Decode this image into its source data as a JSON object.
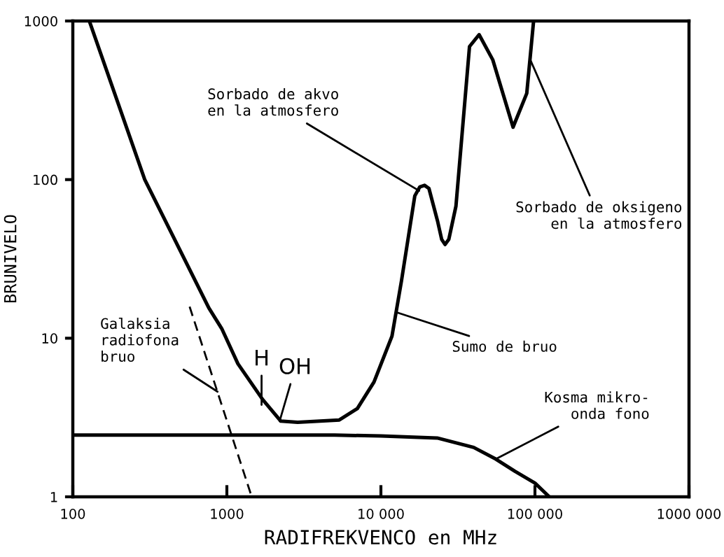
{
  "chart_data": {
    "type": "line",
    "xlabel": "RADIFREKVENCO en MHz",
    "ylabel": "BRUNIVELO",
    "log": "xy",
    "grid": false,
    "legend": false,
    "marker": "none",
    "xlim": [
      100,
      1000000
    ],
    "ylim": [
      1,
      1000
    ],
    "xticks": [
      100,
      1000,
      {
        "value": 10000,
        "label": "10 000"
      },
      {
        "value": 100000,
        "label": "100 000"
      },
      {
        "value": 1000000,
        "label": "1000 000"
      }
    ],
    "yticks": [
      1,
      10,
      100,
      1000
    ],
    "series": [
      {
        "color": "#000000",
        "line_style": "solid",
        "x": [
          128,
          293,
          764,
          926,
          1180,
          1710,
          2240,
          2880,
          5370,
          7030,
          9020,
          11800,
          13600,
          16600,
          17900,
          19200,
          20500,
          23300,
          24800,
          26100,
          27600,
          30700,
          37600,
          43400,
          53200,
          72100,
          88500,
          98000
        ],
        "values": [
          1000,
          100,
          15.5,
          11.5,
          6.9,
          4.1,
          3.0,
          2.95,
          3.05,
          3.6,
          5.3,
          10.3,
          23,
          79,
          90,
          92,
          88,
          55,
          42,
          39,
          42,
          68,
          690,
          820,
          570,
          214,
          350,
          1000
        ]
      },
      {
        "color": "#000000",
        "line_style": "solid",
        "x": [
          100,
          5000,
          10000,
          23200,
          40000,
          55700,
          74000,
          100000,
          124000
        ],
        "values": [
          2.45,
          2.45,
          2.42,
          2.35,
          2.05,
          1.73,
          1.45,
          1.22,
          1
        ]
      },
      {
        "color": "#000000",
        "line_style": "dashed",
        "x": [
          573,
          1450
        ],
        "values": [
          15.8,
          1
        ]
      }
    ],
    "annotations": [
      {
        "text": "Sorbado de akvo\nen la atmosfero",
        "x": 17700,
        "y": 85
      },
      {
        "text": "Sorbado de oksigeno\nen la atmosfero",
        "x": 94000,
        "y": 560
      },
      {
        "text": "Sumo de bruo",
        "x": 12800,
        "y": 14.5
      },
      {
        "text": "Kosma mikro-\nonda fono",
        "x": 55700,
        "y": 1.73
      },
      {
        "text": "Galaksia\nradiofona\nbruo",
        "x": 870,
        "y": 4.6
      },
      {
        "text": "H",
        "x": 1680,
        "y": 3.8
      },
      {
        "text": "OH",
        "x": 2200,
        "y": 3.0
      }
    ]
  }
}
